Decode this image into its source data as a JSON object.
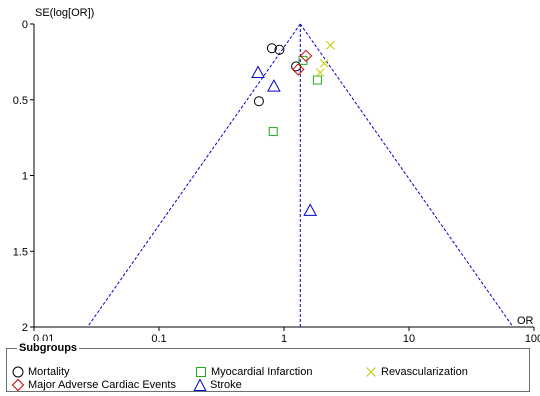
{
  "chart_data": {
    "type": "scatter",
    "subtype": "funnel plot",
    "xlabel": "OR",
    "ylabel": "SE(log[OR])",
    "x_scale": "log",
    "xlim": [
      0.01,
      100
    ],
    "ylim": [
      0,
      2
    ],
    "y_inverted": true,
    "x_ticks": [
      "0.01",
      "0.1",
      "1",
      "10",
      "100"
    ],
    "y_ticks": [
      "0",
      "0.5",
      "1",
      "1.5",
      "2"
    ],
    "grid": false,
    "pooled_or": 1.35,
    "funnel_limits": "pseudo 95% confidence limits (dashed)",
    "legend": {
      "title": "Subgroups",
      "placement": "bottom"
    },
    "series": [
      {
        "name": "Mortality",
        "marker": "circle",
        "color": "#000000",
        "points": [
          {
            "x": 0.8,
            "y": 0.16
          },
          {
            "x": 0.92,
            "y": 0.17
          },
          {
            "x": 1.25,
            "y": 0.28
          },
          {
            "x": 0.63,
            "y": 0.51
          }
        ]
      },
      {
        "name": "Myocardial Infarction",
        "marker": "square",
        "color": "#22aa22",
        "points": [
          {
            "x": 1.42,
            "y": 0.24
          },
          {
            "x": 1.85,
            "y": 0.37
          },
          {
            "x": 0.82,
            "y": 0.71
          }
        ]
      },
      {
        "name": "Revascularization",
        "marker": "x",
        "color": "#c8c800",
        "points": [
          {
            "x": 2.35,
            "y": 0.14
          },
          {
            "x": 2.1,
            "y": 0.26
          },
          {
            "x": 1.95,
            "y": 0.32
          }
        ]
      },
      {
        "name": "Major Adverse Cardiac Events",
        "marker": "diamond",
        "color": "#cc0000",
        "points": [
          {
            "x": 1.5,
            "y": 0.21
          },
          {
            "x": 1.3,
            "y": 0.3
          }
        ]
      },
      {
        "name": "Stroke",
        "marker": "triangle",
        "color": "#0000cc",
        "points": [
          {
            "x": 0.62,
            "y": 0.32
          },
          {
            "x": 0.83,
            "y": 0.41
          },
          {
            "x": 1.62,
            "y": 1.23
          }
        ]
      }
    ]
  }
}
